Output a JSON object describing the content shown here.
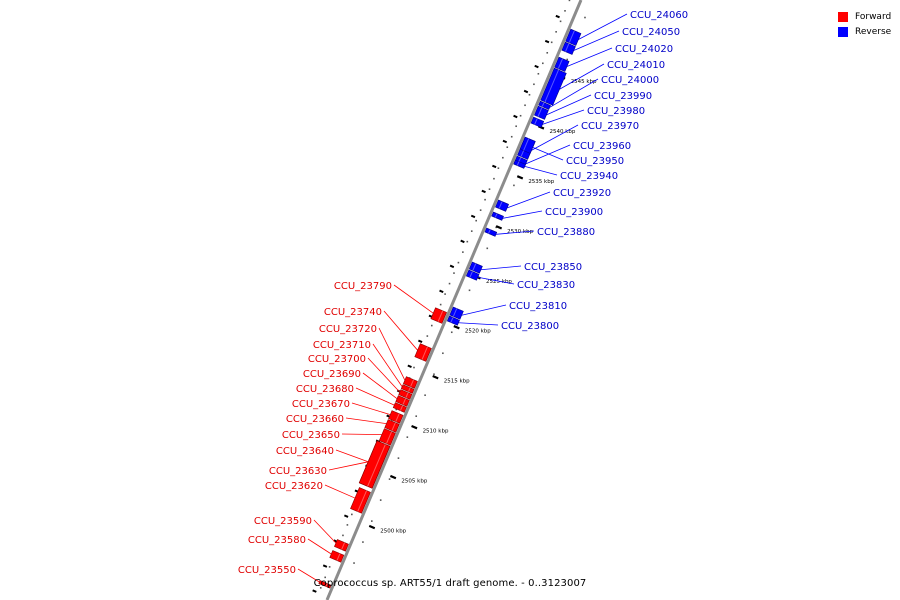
{
  "legend": [
    {
      "label": "Forward",
      "color": "#ff0000"
    },
    {
      "label": "Reverse",
      "color": "#0000ff"
    }
  ],
  "caption": "Coprococcus sp. ART55/1 draft genome. - 0..3123007",
  "ticks": [
    {
      "label": "2500 kbp",
      "kbp": 2500
    },
    {
      "label": "2505 kbp",
      "kbp": 2505
    },
    {
      "label": "2510 kbp",
      "kbp": 2510
    },
    {
      "label": "2515 kbp",
      "kbp": 2515
    },
    {
      "label": "2520 kbp",
      "kbp": 2520
    },
    {
      "label": "2525 kbp",
      "kbp": 2525
    },
    {
      "label": "2530 kbp",
      "kbp": 2530
    },
    {
      "label": "2535 kbp",
      "kbp": 2535
    },
    {
      "label": "2540 kbp",
      "kbp": 2540
    },
    {
      "label": "2545 kbp",
      "kbp": 2545
    }
  ],
  "reverse_genes": [
    {
      "label": "CCU_24060",
      "start_kbp": 2548.2,
      "end_kbp": 2549.4
    },
    {
      "label": "CCU_24050",
      "start_kbp": 2547.3,
      "end_kbp": 2548.1
    },
    {
      "label": "CCU_24020",
      "start_kbp": 2545.6,
      "end_kbp": 2546.6
    },
    {
      "label": "CCU_24010",
      "start_kbp": 2542.3,
      "end_kbp": 2545.5
    },
    {
      "label": "CCU_24000",
      "start_kbp": 2541.8,
      "end_kbp": 2542.2
    },
    {
      "label": "CCU_23990",
      "start_kbp": 2540.8,
      "end_kbp": 2541.7
    },
    {
      "label": "CCU_23980",
      "start_kbp": 2540.0,
      "end_kbp": 2540.6
    },
    {
      "label": "CCU_23970",
      "start_kbp": 2536.8,
      "end_kbp": 2538.6
    },
    {
      "label": "CCU_23960",
      "start_kbp": 2536.0,
      "end_kbp": 2536.7
    },
    {
      "label": "CCU_23950",
      "start_kbp": 2537.4,
      "end_kbp": 2538.6
    },
    {
      "label": "CCU_23940",
      "start_kbp": 2535.9,
      "end_kbp": 2536.3
    },
    {
      "label": "CCU_23920",
      "start_kbp": 2531.6,
      "end_kbp": 2532.3
    },
    {
      "label": "CCU_23900",
      "start_kbp": 2530.7,
      "end_kbp": 2531.1
    },
    {
      "label": "CCU_23880",
      "start_kbp": 2529.1,
      "end_kbp": 2529.5
    },
    {
      "label": "CCU_23850",
      "start_kbp": 2525.4,
      "end_kbp": 2526.1
    },
    {
      "label": "CCU_23830",
      "start_kbp": 2524.7,
      "end_kbp": 2525.3
    },
    {
      "label": "CCU_23810",
      "start_kbp": 2520.8,
      "end_kbp": 2521.6
    },
    {
      "label": "CCU_23800",
      "start_kbp": 2520.2,
      "end_kbp": 2520.7
    }
  ],
  "forward_genes": [
    {
      "label": "CCU_23790",
      "start_kbp": 2519.8,
      "end_kbp": 2520.9
    },
    {
      "label": "CCU_23740",
      "start_kbp": 2516.0,
      "end_kbp": 2517.3
    },
    {
      "label": "CCU_23720",
      "start_kbp": 2513.3,
      "end_kbp": 2514.0
    },
    {
      "label": "CCU_23710",
      "start_kbp": 2512.8,
      "end_kbp": 2513.2
    },
    {
      "label": "CCU_23700",
      "start_kbp": 2512.2,
      "end_kbp": 2512.7
    },
    {
      "label": "CCU_23690",
      "start_kbp": 2511.5,
      "end_kbp": 2512.1
    },
    {
      "label": "CCU_23680",
      "start_kbp": 2510.9,
      "end_kbp": 2511.4
    },
    {
      "label": "CCU_23670",
      "start_kbp": 2509.8,
      "end_kbp": 2510.6
    },
    {
      "label": "CCU_23660",
      "start_kbp": 2508.9,
      "end_kbp": 2509.7
    },
    {
      "label": "CCU_23650",
      "start_kbp": 2507.6,
      "end_kbp": 2508.8
    },
    {
      "label": "CCU_23640",
      "start_kbp": 2503.3,
      "end_kbp": 2507.5
    },
    {
      "label": "CCU_23630",
      "start_kbp": 2503.3,
      "end_kbp": 2507.5
    },
    {
      "label": "CCU_23620",
      "start_kbp": 2500.8,
      "end_kbp": 2502.9
    },
    {
      "label": "CCU_23590",
      "start_kbp": 2497.0,
      "end_kbp": 2497.7
    },
    {
      "label": "CCU_23580",
      "start_kbp": 2495.9,
      "end_kbp": 2496.6
    },
    {
      "label": "CCU_23550",
      "start_kbp": 2493.3,
      "end_kbp": 2493.6
    }
  ]
}
